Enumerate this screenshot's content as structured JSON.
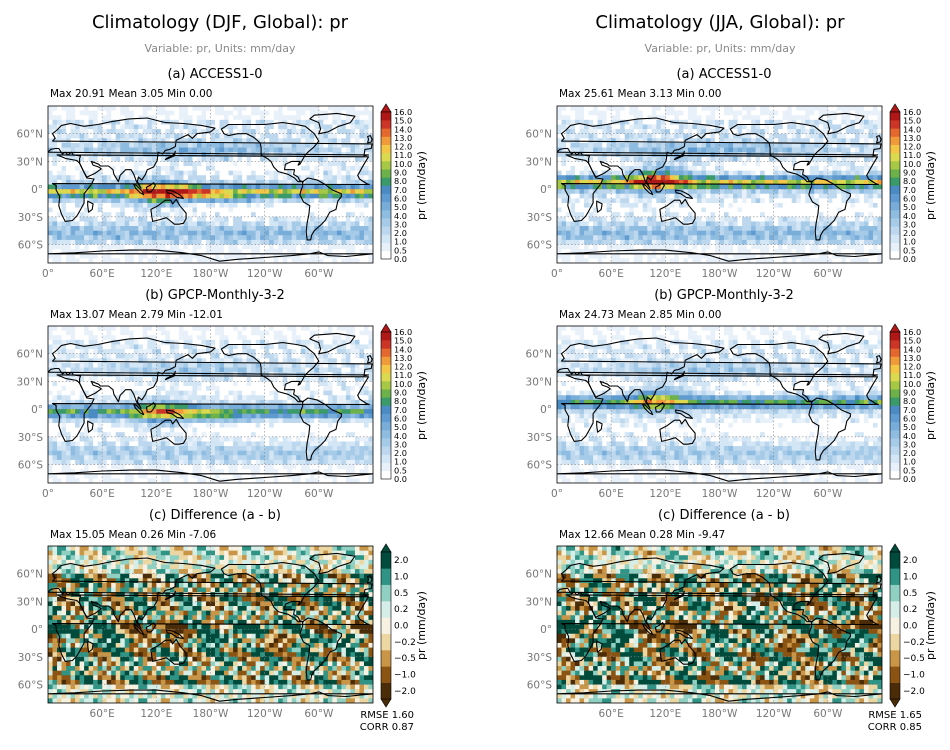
{
  "columns": [
    {
      "title": "Climatology (DJF, Global): pr",
      "subtitle": "Variable: pr, Units: mm/day",
      "panels": [
        {
          "title": "(a) ACCESS1-0",
          "stats": "Max 20.91 Mean 3.05 Min 0.00",
          "kind": "clim"
        },
        {
          "title": "(b) GPCP-Monthly-3-2",
          "stats": "Max 13.07 Mean 2.79 Min -12.01",
          "kind": "clim"
        },
        {
          "title": "(c) Difference (a - b)",
          "stats": "Max 15.05 Mean 0.26 Min -7.06",
          "kind": "diff",
          "rmse": "RMSE 1.60",
          "corr": "CORR 0.87"
        }
      ]
    },
    {
      "title": "Climatology (JJA, Global): pr",
      "subtitle": "Variable: pr, Units: mm/day",
      "panels": [
        {
          "title": "(a) ACCESS1-0",
          "stats": "Max 25.61 Mean 3.13 Min 0.00",
          "kind": "clim"
        },
        {
          "title": "(b) GPCP-Monthly-3-2",
          "stats": "Max 24.73 Mean 2.85 Min 0.00",
          "kind": "clim"
        },
        {
          "title": "(c) Difference (a - b)",
          "stats": "Max 12.66 Mean 0.28 Min -9.47",
          "kind": "diff",
          "rmse": "RMSE 1.65",
          "corr": "CORR 0.85"
        }
      ]
    }
  ],
  "chart_data": {
    "type": "heatmap",
    "colorbar_label": "pr (mm/day)",
    "clim_levels": [
      "0.0",
      "0.5",
      "1.0",
      "2.0",
      "3.0",
      "4.0",
      "5.0",
      "6.0",
      "7.0",
      "8.0",
      "9.0",
      "10.0",
      "11.0",
      "12.0",
      "13.0",
      "14.0",
      "15.0",
      "16.0"
    ],
    "diff_levels": [
      "−2.0",
      "−1.0",
      "−0.5",
      "−0.2",
      "0.0",
      "0.2",
      "0.5",
      "1.0",
      "2.0"
    ],
    "clim_colors": [
      "#ffffff",
      "#e8f1fa",
      "#d3e6f5",
      "#bdd8ee",
      "#a6cbe8",
      "#8fbce1",
      "#78acd9",
      "#5f9bd0",
      "#4a8bc4",
      "#3a9a6a",
      "#6db14a",
      "#a6c844",
      "#dbd94f",
      "#f3c646",
      "#f19a3a",
      "#e4682d",
      "#cc3525",
      "#b01818"
    ],
    "diff_colors": [
      "#4b2c08",
      "#8c5412",
      "#c99547",
      "#ecd7a3",
      "#f7f1e1",
      "#d6eee8",
      "#8fd0c2",
      "#2f9485",
      "#004b3c"
    ],
    "x_ticks": [
      "0°",
      "60°E",
      "120°E",
      "180°W",
      "120°W",
      "60°W"
    ],
    "y_ticks": [
      "60°N",
      "30°N",
      "0°",
      "30°S",
      "60°S"
    ],
    "grid": true
  }
}
